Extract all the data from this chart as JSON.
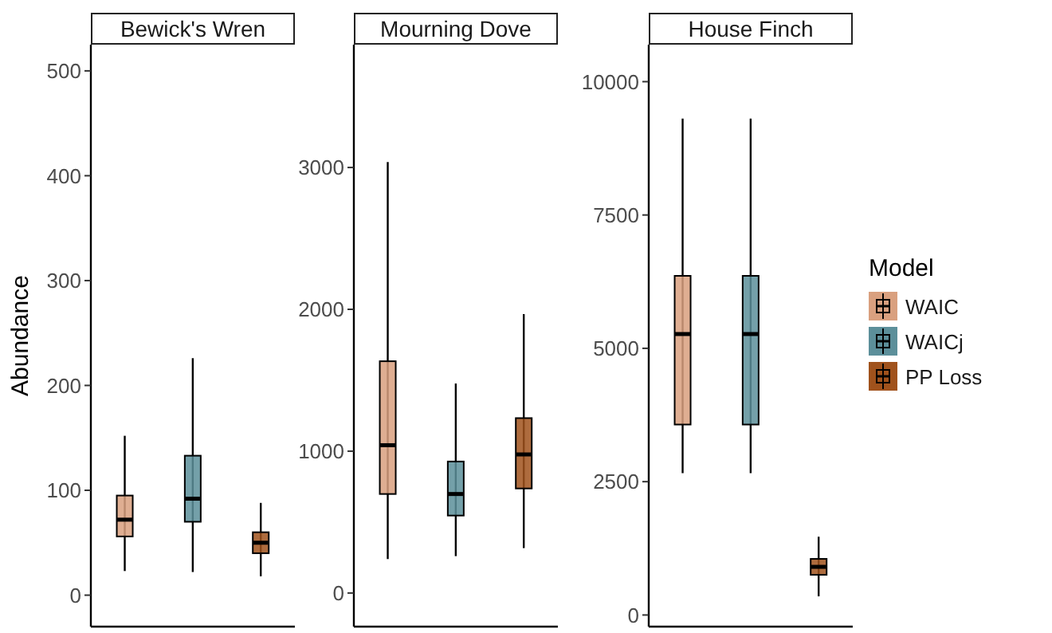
{
  "chart_data": [
    {
      "type": "box",
      "title": "Bewick's Wren",
      "ylabel": "Abundance",
      "categories": [
        null,
        null,
        null
      ],
      "tick_labels": "y",
      "ylim": [
        -30,
        525
      ],
      "yticks": [
        0,
        100,
        200,
        300,
        400,
        500
      ],
      "legend": "right",
      "legend_title": "Model",
      "series": [
        {
          "name": "WAIC",
          "color": "#d9a07f",
          "boxes": [
            {
              "low": 23,
              "q1": 56,
              "median": 72,
              "q3": 95,
              "high": 152
            },
            null,
            null
          ]
        },
        {
          "name": "WAICj",
          "color": "#5c8f9a",
          "boxes": [
            null,
            {
              "low": 22,
              "q1": 70,
              "median": 92,
              "q3": 133,
              "high": 226
            },
            null
          ]
        },
        {
          "name": "PP Loss",
          "color": "#a0521c",
          "boxes": [
            null,
            null,
            {
              "low": 18,
              "q1": 40,
              "median": 50,
              "q3": 60,
              "high": 88
            }
          ]
        }
      ]
    },
    {
      "type": "box",
      "title": "Mourning Dove",
      "categories": [
        null,
        null,
        null
      ],
      "tick_labels": "y",
      "ylim": [
        -237,
        3866
      ],
      "yticks": [
        0,
        1000,
        2000,
        3000
      ],
      "series": [
        {
          "color": "#d9a07f",
          "boxes": [
            {
              "low": 240,
              "q1": 698,
              "median": 1042,
              "q3": 1634,
              "high": 3038
            },
            null,
            null
          ]
        },
        {
          "color": "#5c8f9a",
          "boxes": [
            null,
            {
              "low": 260,
              "q1": 546,
              "median": 698,
              "q3": 927,
              "high": 1477
            },
            null
          ]
        },
        {
          "color": "#a0521c",
          "boxes": [
            null,
            null,
            {
              "low": 317,
              "q1": 737,
              "median": 977,
              "q3": 1233,
              "high": 1966
            }
          ]
        }
      ]
    },
    {
      "type": "box",
      "title": "House Finch",
      "categories": [
        null,
        null,
        null
      ],
      "tick_labels": "y",
      "ylim": [
        -218,
        10694
      ],
      "yticks": [
        0,
        2500,
        5000,
        7500,
        10000
      ],
      "series": [
        {
          "color": "#d9a07f",
          "boxes": [
            {
              "low": 2659,
              "q1": 3571,
              "median": 5268,
              "q3": 6359,
              "high": 9306
            },
            null,
            null
          ]
        },
        {
          "color": "#5c8f9a",
          "boxes": [
            null,
            {
              "low": 2659,
              "q1": 3571,
              "median": 5268,
              "q3": 6359,
              "high": 9306
            },
            null
          ]
        },
        {
          "color": "#a0521c",
          "boxes": [
            null,
            null,
            {
              "low": 350,
              "q1": 754,
              "median": 903,
              "q3": 1052,
              "high": 1468
            }
          ]
        }
      ]
    }
  ]
}
